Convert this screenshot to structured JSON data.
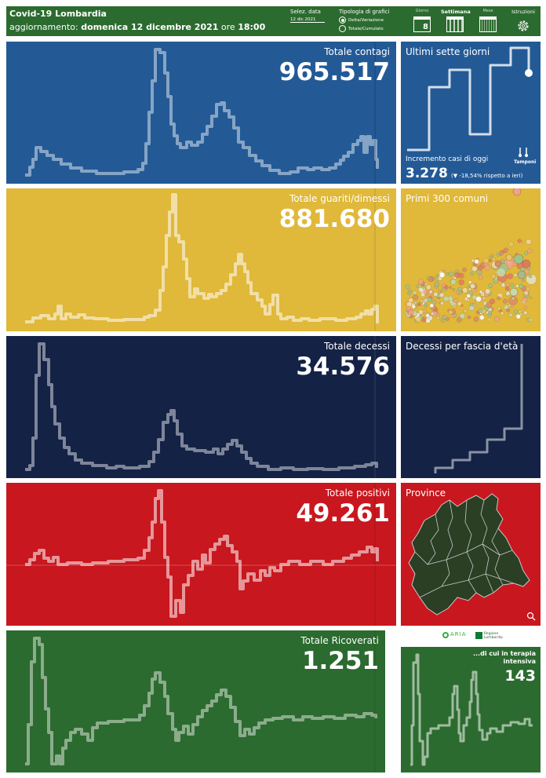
{
  "header": {
    "title": "Covid-19 Lombardia",
    "update_prefix": "aggiornamento:",
    "update_date": "domenica 12 dicembre 2021",
    "update_mid": "ore",
    "update_time": "18:00",
    "date_selector_label": "Selez. data",
    "date_selector_value": "12 dic 2021",
    "chart_type_label": "Tipologia di grafici",
    "chart_type_options": [
      "Delta/Variazione",
      "Totale/Cumulato"
    ],
    "chart_type_selected": "Delta/Variazione",
    "period_buttons": [
      "Giorno",
      "Settimana",
      "Mese"
    ],
    "period_day_number": "8",
    "period_selected": "Settimana",
    "instructions_label": "Istruzioni"
  },
  "colors": {
    "blue": "#235a96",
    "yellow": "#e0b83a",
    "navy": "#142246",
    "red": "#c8171e",
    "green": "#2c6b2f",
    "map_fill": "#2a3f24"
  },
  "rows": {
    "contagi": {
      "title": "Totale contagi",
      "value": "965.517"
    },
    "guariti": {
      "title": "Totale guariti/dimessi",
      "value": "881.680"
    },
    "decessi": {
      "title": "Totale decessi",
      "value": "34.576"
    },
    "positivi": {
      "title": "Totale positivi",
      "value": "49.261"
    },
    "ricoverati": {
      "title": "Totale Ricoverati",
      "value": "1.251"
    }
  },
  "side": {
    "seven_days_title": "Ultimi sette giorni",
    "increment_label": "Incremento casi di oggi",
    "increment_value": "3.278",
    "increment_change": "(▼ -18,54% rispetto a  ieri)",
    "tamponi_label": "Tamponi",
    "comuni_title": "Primi 300 comuni",
    "age_title": "Decessi per fascia d'età",
    "province_title": "Province",
    "logo_aria": "ARIA",
    "logo_regione": "Regione Lombardia",
    "icu_title": "...di cui in terapia intensiva",
    "icu_value": "143"
  },
  "icons": [
    "calendar-day-icon",
    "calendar-week-icon",
    "calendar-month-icon",
    "gear-icon",
    "thermometer-icon",
    "magnifier-icon",
    "aria-logo-icon",
    "regione-lombardia-logo-icon"
  ]
}
